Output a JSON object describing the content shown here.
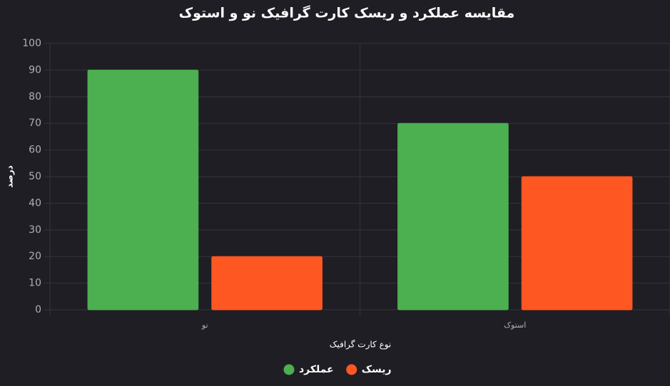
{
  "chart_data": {
    "type": "bar",
    "title": "مقایسه عملکرد و ریسک کارت گرافیک نو و استوک",
    "x_label": "نوع کارت گرافیک",
    "y_label": "درصد",
    "categories": [
      "نو",
      "استوک"
    ],
    "series": [
      {
        "name": "عملکرد",
        "color": "#4caf50",
        "values": [
          90,
          70
        ]
      },
      {
        "name": "ریسک",
        "color": "#ff5722",
        "values": [
          20,
          50
        ]
      }
    ],
    "ylim": [
      0,
      100
    ],
    "yticks": [
      0,
      10,
      20,
      30,
      40,
      50,
      60,
      70,
      80,
      90,
      100
    ],
    "grid": true,
    "legend": "bottom"
  }
}
